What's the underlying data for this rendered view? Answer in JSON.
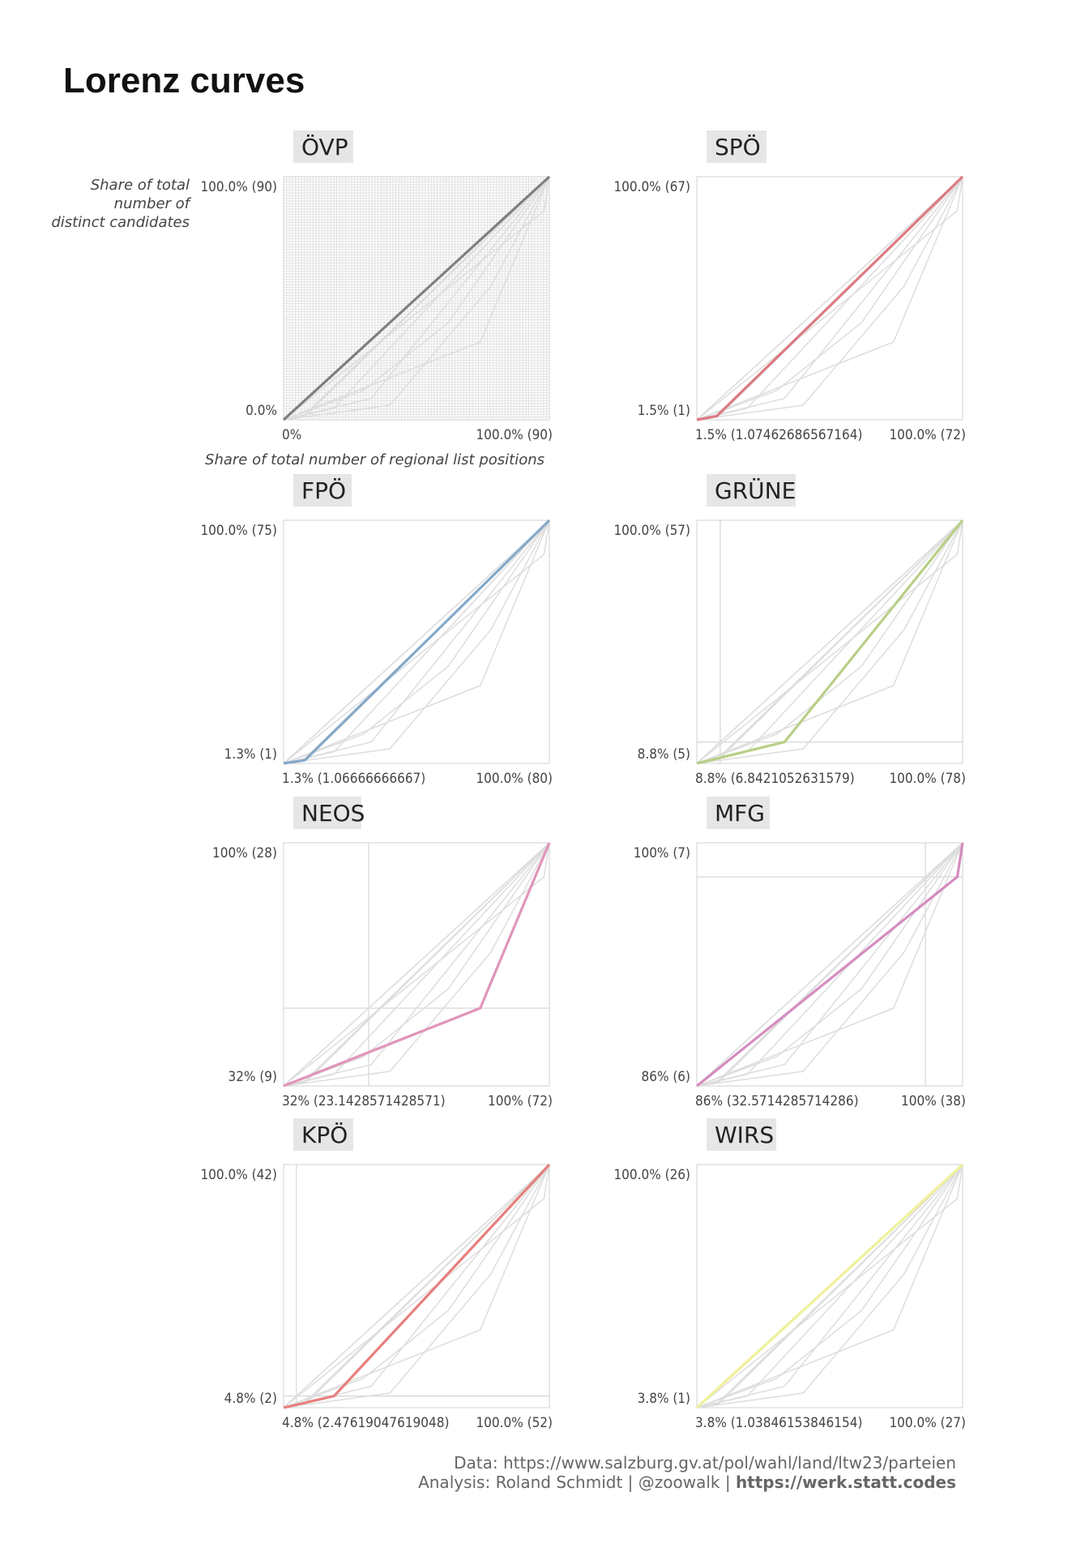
{
  "title": "Lorenz curves",
  "caption": {
    "line1": "Data: https://www.salzburg.gv.at/pol/wahl/land/ltw23/parteien",
    "line2_prefix": "Analysis: Roland Schmidt | @zoowalk | ",
    "line2_link": "https://werk.statt.codes"
  },
  "colors": {
    "background_line": "#dddddd",
    "panel_border": "#d0d0d0",
    "ref_line": "#d6d6d6",
    "strip_bg": "#e6e6e6"
  },
  "chart_data": {
    "type": "line",
    "x_axis_label": "Share of total number of regional list positions",
    "y_axis_label": [
      "Share of total",
      "number of",
      "distinct candidates"
    ],
    "axis_range": [
      0,
      1
    ],
    "panels": [
      {
        "party": "ÖVP",
        "color": "#7f7f7f",
        "points": [
          [
            0,
            0
          ],
          [
            1,
            1
          ]
        ],
        "x_ticks": [
          "0%",
          "100.0% (90)"
        ],
        "y_ticks": [
          "0.0%",
          "100.0% (90)"
        ],
        "ref": null
      },
      {
        "party": "SPÖ",
        "color": "#dd7a82",
        "points": [
          [
            0,
            0
          ],
          [
            0.0746,
            0.015
          ],
          [
            1,
            1
          ]
        ],
        "x_ticks": [
          "1.5% (1.07462686567164)",
          "100.0% (72)"
        ],
        "y_ticks": [
          "1.5% (1)",
          "100.0% (67)"
        ],
        "ref": null
      },
      {
        "party": "FPÖ",
        "color": "#85a9c8",
        "points": [
          [
            0,
            0
          ],
          [
            0.08,
            0.013
          ],
          [
            1,
            1
          ]
        ],
        "x_ticks": [
          "1.3% (1.06666666667)",
          "100.0% (80)"
        ],
        "y_ticks": [
          "1.3% (1)",
          "100.0% (75)"
        ],
        "ref": null
      },
      {
        "party": "GRÜNE",
        "color": "#b8cf86",
        "points": [
          [
            0,
            0
          ],
          [
            0.33,
            0.088
          ],
          [
            1,
            1
          ]
        ],
        "x_ticks": [
          "8.8% (6.8421052631579)",
          "100.0% (78)"
        ],
        "y_ticks": [
          "8.8% (5)",
          "100.0% (57)"
        ],
        "ref": [
          0.088,
          0.088
        ]
      },
      {
        "party": "NEOS",
        "color": "#e095b9",
        "points": [
          [
            0,
            0
          ],
          [
            0.74,
            0.32
          ],
          [
            1,
            1
          ]
        ],
        "x_ticks": [
          "32% (23.1428571428571)",
          "100% (72)"
        ],
        "y_ticks": [
          "32% (9)",
          "100% (28)"
        ],
        "ref": [
          0.32,
          0.32
        ]
      },
      {
        "party": "MFG",
        "color": "#d58cc0",
        "points": [
          [
            0,
            0
          ],
          [
            0.98,
            0.86
          ],
          [
            1,
            1
          ]
        ],
        "x_ticks": [
          "86% (32.5714285714286)",
          "100% (38)"
        ],
        "y_ticks": [
          "86% (6)",
          "100% (7)"
        ],
        "ref": [
          0.86,
          0.86
        ]
      },
      {
        "party": "KPÖ",
        "color": "#e77f7d",
        "points": [
          [
            0,
            0
          ],
          [
            0.19,
            0.048
          ],
          [
            1,
            1
          ]
        ],
        "x_ticks": [
          "4.8% (2.47619047619048)",
          "100.0% (52)"
        ],
        "y_ticks": [
          "4.8% (2)",
          "100.0% (42)"
        ],
        "ref": [
          0.048,
          0.048
        ]
      },
      {
        "party": "WIRS",
        "color": "#f0f09a",
        "points": [
          [
            0,
            0
          ],
          [
            0.038,
            0.038
          ],
          [
            1,
            1
          ]
        ],
        "x_ticks": [
          "3.8% (1.03846153846154)",
          "100.0% (27)"
        ],
        "y_ticks": [
          "3.8% (1)",
          "100.0% (26)"
        ],
        "ref": null
      }
    ],
    "background_curves": [
      [
        [
          0,
          0
        ],
        [
          1,
          1
        ]
      ],
      [
        [
          0,
          0
        ],
        [
          0.0746,
          0.015
        ],
        [
          1,
          1
        ]
      ],
      [
        [
          0,
          0
        ],
        [
          0.08,
          0.013
        ],
        [
          1,
          1
        ]
      ],
      [
        [
          0,
          0
        ],
        [
          0.33,
          0.088
        ],
        [
          1,
          1
        ]
      ],
      [
        [
          0,
          0
        ],
        [
          0.74,
          0.32
        ],
        [
          1,
          1
        ]
      ],
      [
        [
          0,
          0
        ],
        [
          0.98,
          0.86
        ],
        [
          1,
          1
        ]
      ],
      [
        [
          0,
          0
        ],
        [
          0.19,
          0.048
        ],
        [
          1,
          1
        ]
      ],
      [
        [
          0,
          0
        ],
        [
          0.038,
          0.038
        ],
        [
          1,
          1
        ]
      ],
      [
        [
          0,
          0
        ],
        [
          0.3,
          0.12
        ],
        [
          0.62,
          0.4
        ],
        [
          1,
          1
        ]
      ],
      [
        [
          0,
          0
        ],
        [
          0.4,
          0.06
        ],
        [
          0.78,
          0.55
        ],
        [
          1,
          1
        ]
      ]
    ]
  }
}
